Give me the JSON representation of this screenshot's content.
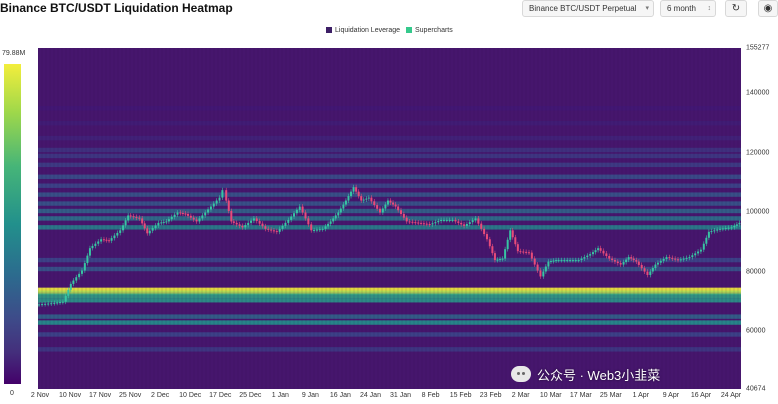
{
  "header": {
    "title": "Binance BTC/USDT Liquidation Heatmap",
    "exchange_select": "Binance BTC/USDT Perpetual",
    "range_select": "6 month",
    "refresh_icon": "refresh-icon",
    "camera_icon": "camera-icon"
  },
  "legend": {
    "items": [
      {
        "label": "Liquidation Leverage",
        "color": "#3d1f66"
      },
      {
        "label": "Supercharts",
        "color": "#35c98c"
      }
    ]
  },
  "colorbar": {
    "max_label": "79.88M",
    "min_label": "0",
    "colors": [
      "#44016a",
      "#3e4a89",
      "#22908c",
      "#46b578",
      "#f3ee3c"
    ]
  },
  "watermark": {
    "text": "公众号 · Web3小韭菜",
    "icon": "wechat-icon"
  },
  "chart_data": {
    "type": "heatmap",
    "title": "Binance BTC/USDT Liquidation Heatmap",
    "xlabel": "",
    "ylabel": "",
    "ylim": [
      40674,
      155277
    ],
    "y_ticks": [
      155277,
      140000,
      120000,
      100000,
      80000,
      60000,
      40674
    ],
    "y_tick_labels": [
      "155277",
      "140000",
      "120000",
      "100000",
      "80000",
      "60000",
      "40674"
    ],
    "x_ticks": [
      "2 Nov",
      "10 Nov",
      "17 Nov",
      "25 Nov",
      "2 Dec",
      "10 Dec",
      "17 Dec",
      "25 Dec",
      "1 Jan",
      "9 Jan",
      "16 Jan",
      "24 Jan",
      "31 Jan",
      "8 Feb",
      "15 Feb",
      "23 Feb",
      "2 Mar",
      "10 Mar",
      "17 Mar",
      "25 Mar",
      "1 Apr",
      "9 Apr",
      "16 Apr",
      "24 Apr"
    ],
    "x_date_range": [
      "2024-10-29",
      "2025-05-01"
    ],
    "colorbar_max": "79.88M",
    "colorbar_min": "0",
    "liquidation_bands": [
      {
        "price": 74000,
        "intensity": 1.0
      },
      {
        "price": 73000,
        "intensity": 0.9
      },
      {
        "price": 70500,
        "intensity": 0.55
      },
      {
        "price": 72000,
        "intensity": 0.6
      },
      {
        "price": 63000,
        "intensity": 0.5
      },
      {
        "price": 65000,
        "intensity": 0.35
      },
      {
        "price": 59000,
        "intensity": 0.25
      },
      {
        "price": 54000,
        "intensity": 0.2
      },
      {
        "price": 81000,
        "intensity": 0.3
      },
      {
        "price": 84000,
        "intensity": 0.25
      },
      {
        "price": 95000,
        "intensity": 0.45
      },
      {
        "price": 98000,
        "intensity": 0.4
      },
      {
        "price": 100500,
        "intensity": 0.35
      },
      {
        "price": 103000,
        "intensity": 0.3
      },
      {
        "price": 106000,
        "intensity": 0.3
      },
      {
        "price": 109000,
        "intensity": 0.25
      },
      {
        "price": 112000,
        "intensity": 0.28
      },
      {
        "price": 116000,
        "intensity": 0.22
      },
      {
        "price": 119000,
        "intensity": 0.2
      },
      {
        "price": 121000,
        "intensity": 0.18
      },
      {
        "price": 125000,
        "intensity": 0.12
      },
      {
        "price": 130000,
        "intensity": 0.1
      },
      {
        "price": 135000,
        "intensity": 0.08
      }
    ],
    "price_series": [
      {
        "date": "2024-10-29",
        "close": 69000
      },
      {
        "date": "2024-11-02",
        "close": 69500
      },
      {
        "date": "2024-11-05",
        "close": 70000
      },
      {
        "date": "2024-11-07",
        "close": 76000
      },
      {
        "date": "2024-11-10",
        "close": 80500
      },
      {
        "date": "2024-11-12",
        "close": 88000
      },
      {
        "date": "2024-11-15",
        "close": 91000
      },
      {
        "date": "2024-11-17",
        "close": 90500
      },
      {
        "date": "2024-11-20",
        "close": 94000
      },
      {
        "date": "2024-11-22",
        "close": 99000
      },
      {
        "date": "2024-11-25",
        "close": 98000
      },
      {
        "date": "2024-11-27",
        "close": 93000
      },
      {
        "date": "2024-11-30",
        "close": 96500
      },
      {
        "date": "2024-12-02",
        "close": 97000
      },
      {
        "date": "2024-12-05",
        "close": 100000
      },
      {
        "date": "2024-12-07",
        "close": 99500
      },
      {
        "date": "2024-12-10",
        "close": 97000
      },
      {
        "date": "2024-12-13",
        "close": 101000
      },
      {
        "date": "2024-12-16",
        "close": 105000
      },
      {
        "date": "2024-12-17",
        "close": 107500
      },
      {
        "date": "2024-12-19",
        "close": 97000
      },
      {
        "date": "2024-12-22",
        "close": 95000
      },
      {
        "date": "2024-12-25",
        "close": 98000
      },
      {
        "date": "2024-12-28",
        "close": 94500
      },
      {
        "date": "2024-12-31",
        "close": 93500
      },
      {
        "date": "2025-01-03",
        "close": 97500
      },
      {
        "date": "2025-01-06",
        "close": 102000
      },
      {
        "date": "2025-01-09",
        "close": 94000
      },
      {
        "date": "2025-01-12",
        "close": 94500
      },
      {
        "date": "2025-01-14",
        "close": 97000
      },
      {
        "date": "2025-01-16",
        "close": 100000
      },
      {
        "date": "2025-01-18",
        "close": 104000
      },
      {
        "date": "2025-01-20",
        "close": 108500
      },
      {
        "date": "2025-01-22",
        "close": 104000
      },
      {
        "date": "2025-01-24",
        "close": 105000
      },
      {
        "date": "2025-01-27",
        "close": 100000
      },
      {
        "date": "2025-01-29",
        "close": 104000
      },
      {
        "date": "2025-01-31",
        "close": 102000
      },
      {
        "date": "2025-02-03",
        "close": 97000
      },
      {
        "date": "2025-02-06",
        "close": 96500
      },
      {
        "date": "2025-02-09",
        "close": 96000
      },
      {
        "date": "2025-02-12",
        "close": 97500
      },
      {
        "date": "2025-02-15",
        "close": 97500
      },
      {
        "date": "2025-02-18",
        "close": 95500
      },
      {
        "date": "2025-02-21",
        "close": 98000
      },
      {
        "date": "2025-02-24",
        "close": 91000
      },
      {
        "date": "2025-02-26",
        "close": 84000
      },
      {
        "date": "2025-02-28",
        "close": 84500
      },
      {
        "date": "2025-03-02",
        "close": 94000
      },
      {
        "date": "2025-03-04",
        "close": 87000
      },
      {
        "date": "2025-03-07",
        "close": 86500
      },
      {
        "date": "2025-03-10",
        "close": 78500
      },
      {
        "date": "2025-03-12",
        "close": 83500
      },
      {
        "date": "2025-03-14",
        "close": 84000
      },
      {
        "date": "2025-03-17",
        "close": 84000
      },
      {
        "date": "2025-03-20",
        "close": 84000
      },
      {
        "date": "2025-03-23",
        "close": 86000
      },
      {
        "date": "2025-03-25",
        "close": 88000
      },
      {
        "date": "2025-03-28",
        "close": 84500
      },
      {
        "date": "2025-03-31",
        "close": 82500
      },
      {
        "date": "2025-04-02",
        "close": 85000
      },
      {
        "date": "2025-04-04",
        "close": 83500
      },
      {
        "date": "2025-04-07",
        "close": 79000
      },
      {
        "date": "2025-04-09",
        "close": 82500
      },
      {
        "date": "2025-04-12",
        "close": 85000
      },
      {
        "date": "2025-04-15",
        "close": 84000
      },
      {
        "date": "2025-04-18",
        "close": 85000
      },
      {
        "date": "2025-04-21",
        "close": 87500
      },
      {
        "date": "2025-04-23",
        "close": 93500
      },
      {
        "date": "2025-04-26",
        "close": 94500
      },
      {
        "date": "2025-04-29",
        "close": 95000
      },
      {
        "date": "2025-05-01",
        "close": 96500
      }
    ]
  }
}
